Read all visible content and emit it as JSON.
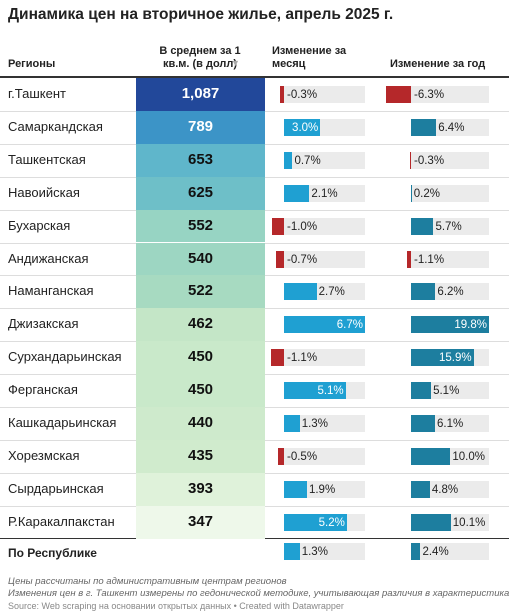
{
  "title": "Динамика цен на вторичное жилье, апрель 2025 г.",
  "table": {
    "headers": [
      "Регионы",
      "В среднем за 1 кв.м. (в долл)",
      "Изменение за месяц",
      "Изменение за год"
    ],
    "regions": [
      "г.Ташкент",
      "Самаркандская",
      "Ташкентская",
      "Навоийская",
      "Бухарская",
      "Андижанская",
      "Наманганская",
      "Джизакская",
      "Сурхандарьинская",
      "Ферганская",
      "Кашкадарьинская",
      "Хорезмская",
      "Сырдарьинская",
      "Р.Каракалпакстан"
    ],
    "price": {
      "values": [
        1087,
        789,
        653,
        625,
        552,
        540,
        522,
        462,
        450,
        450,
        440,
        435,
        393,
        347
      ],
      "value_labels": [
        "1,087",
        "789",
        "653",
        "625",
        "552",
        "540",
        "522",
        "462",
        "450",
        "450",
        "440",
        "435",
        "393",
        "347"
      ]
    },
    "month": {
      "values": [
        -0.3,
        3.0,
        0.7,
        2.1,
        -1.0,
        -0.7,
        2.7,
        6.7,
        -1.1,
        5.1,
        1.3,
        -0.5,
        1.9,
        5.2
      ],
      "value_labels": [
        "-0.3%",
        "3.0%",
        "0.7%",
        "2.1%",
        "-1.0%",
        "-0.7%",
        "2.7%",
        "6.7%",
        "-1.1%",
        "5.1%",
        "1.3%",
        "-0.5%",
        "1.9%",
        "5.2%"
      ]
    },
    "year": {
      "values": [
        -6.3,
        6.4,
        -0.3,
        0.2,
        5.7,
        -1.1,
        6.2,
        19.8,
        15.9,
        5.1,
        6.1,
        10.0,
        4.8,
        10.1
      ],
      "value_labels": [
        "-6.3%",
        "6.4%",
        "-0.3%",
        "0.2%",
        "5.7%",
        "-1.1%",
        "6.2%",
        "19.8%",
        "15.9%",
        "5.1%",
        "6.1%",
        "10.0%",
        "4.8%",
        "10.1%"
      ]
    },
    "total": {
      "region": "По Республике",
      "month": 1.3,
      "month_label": "1.3%",
      "year": 2.4,
      "year_label": "2.4%"
    }
  },
  "notes": [
    "Цены рассчитаны по административным центрам регионов",
    "Изменения цен в г. Ташкент измерены по гедонической методике, учитывающая различия в характеристиках жилья"
  ],
  "source": "Source: Web scraping на основании открытых данных • Created with Datawrapper"
}
